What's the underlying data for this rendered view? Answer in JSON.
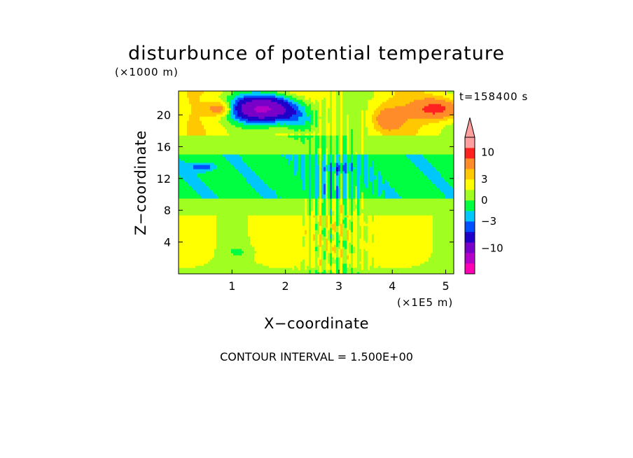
{
  "chart_data": {
    "type": "heatmap",
    "title": "disturbunce of potential temperature",
    "time_label": "t=158400 s",
    "xlabel": "X−coordinate",
    "ylabel": "Z−coordinate",
    "x_unit": "(×1E5 m)",
    "y_unit": "(×1000 m)",
    "x_ticks": [
      "1",
      "2",
      "3",
      "4",
      "5"
    ],
    "y_ticks": [
      "4",
      "8",
      "12",
      "16",
      "20"
    ],
    "xlim": [
      0,
      5.15
    ],
    "ylim": [
      0,
      23
    ],
    "contour_interval_label": "CONTOUR INTERVAL = 1.500E+00",
    "colorbar_labels": [
      "10",
      "3",
      "0",
      "−3",
      "−10"
    ],
    "colorbar_label_values": [
      10,
      3,
      0,
      -3,
      -10
    ],
    "levels": [
      -16.5,
      -12,
      -7.5,
      -4.5,
      -3,
      -1.5,
      0,
      1.5,
      3,
      4.5,
      7.5,
      12,
      16.5
    ],
    "band_colors": [
      "#ff00b4",
      "#b400c8",
      "#7800c8",
      "#1e00c8",
      "#0050ff",
      "#00c8ff",
      "#00ff40",
      "#a0ff20",
      "#ffff00",
      "#ffc800",
      "#ff8c28",
      "#ff2020",
      "#ffa0a0"
    ],
    "field_summary": [
      {
        "feature": "strong negative anomaly",
        "x": 1.6,
        "z": 20.5,
        "value": -12
      },
      {
        "feature": "positive anomaly",
        "x": 0.8,
        "z": 20.8,
        "value": 6
      },
      {
        "feature": "positive anomaly",
        "x": 4.9,
        "z": 20.8,
        "value": 7
      },
      {
        "feature": "warm band",
        "z_range": [
          0,
          7.5
        ],
        "value": 2
      },
      {
        "feature": "cool band",
        "z_range": [
          10,
          15
        ],
        "value": -1
      }
    ]
  },
  "icons": {
    "colorbar_arrow": "triangle-up-icon"
  }
}
